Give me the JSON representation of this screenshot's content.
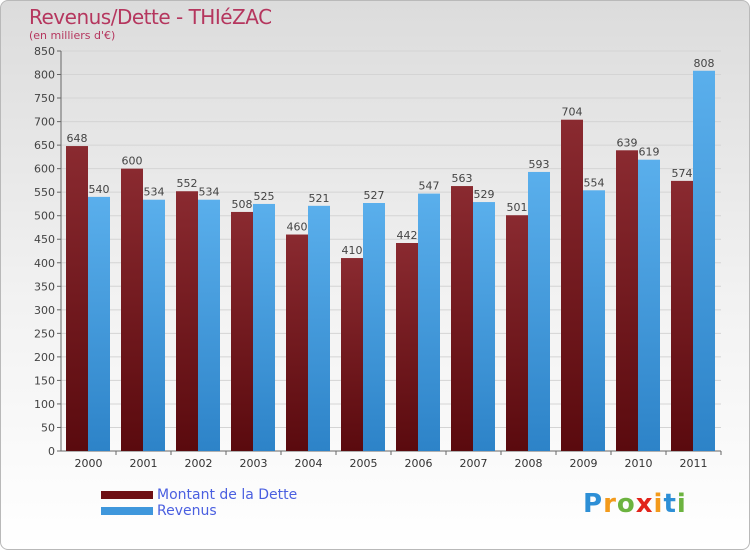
{
  "chart_data": {
    "type": "bar",
    "title": "Revenus/Dette - THIéZAC",
    "subtitle": "(en milliers d'€)",
    "categories": [
      "2000",
      "2001",
      "2002",
      "2003",
      "2004",
      "2005",
      "2006",
      "2007",
      "2008",
      "2009",
      "2010",
      "2011"
    ],
    "series": [
      {
        "name": "Montant de la Dette",
        "color": "#6e0f14",
        "values": [
          648,
          600,
          552,
          508,
          460,
          410,
          442,
          563,
          501,
          704,
          639,
          574
        ]
      },
      {
        "name": "Revenus",
        "color": "#3f97dc",
        "values": [
          540,
          534,
          534,
          525,
          521,
          527,
          547,
          529,
          593,
          554,
          619,
          808
        ]
      }
    ],
    "ylim": [
      0,
      850
    ],
    "yticks": [
      0,
      50,
      100,
      150,
      200,
      250,
      300,
      350,
      400,
      450,
      500,
      550,
      600,
      650,
      700,
      750,
      800,
      850
    ],
    "grid": true,
    "legend_position": "bottom-left"
  },
  "logo": {
    "letters": [
      "P",
      "r",
      "o",
      "x",
      "i",
      "t",
      "i"
    ],
    "colors": [
      "#2d8fd6",
      "#f39a1b",
      "#6cb33f",
      "#e2231a",
      "#f39a1b",
      "#2d8fd6",
      "#6cb33f"
    ]
  }
}
